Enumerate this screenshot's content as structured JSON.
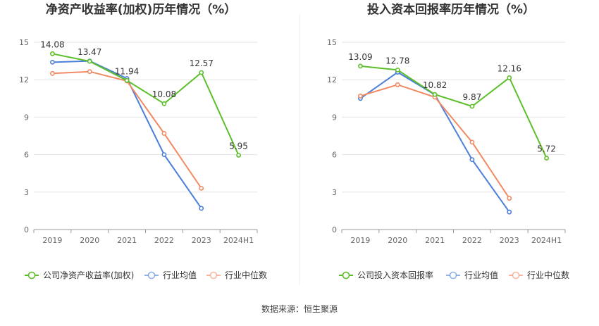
{
  "source_note": "数据来源：恒生聚源",
  "chart_data": [
    {
      "type": "line",
      "title": "净资产收益率(加权)历年情况（%）",
      "categories": [
        "2019",
        "2020",
        "2021",
        "2022",
        "2023",
        "2024H1"
      ],
      "ylim": [
        0,
        15
      ],
      "yticks": [
        "0",
        "3",
        "6",
        "9",
        "12",
        "15"
      ],
      "grid": true,
      "legend_position": "bottom-left",
      "series": [
        {
          "name": "公司净资产收益率(加权)",
          "color": "#5cbf2a",
          "values": [
            14.08,
            13.47,
            11.94,
            10.08,
            12.57,
            5.95
          ],
          "labels": [
            "14.08",
            "13.47",
            "11.94",
            "10.08",
            "12.57",
            "5.95"
          ]
        },
        {
          "name": "行业均值",
          "color": "#4b7fd9",
          "values": [
            13.4,
            13.5,
            12.1,
            6.0,
            1.7,
            null
          ],
          "labels": null
        },
        {
          "name": "行业中位数",
          "color": "#f28a63",
          "values": [
            12.5,
            12.65,
            11.9,
            7.7,
            3.3,
            null
          ],
          "labels": null
        }
      ]
    },
    {
      "type": "line",
      "title": "投入资本回报率历年情况（%）",
      "categories": [
        "2019",
        "2020",
        "2021",
        "2022",
        "2023",
        "2024H1"
      ],
      "ylim": [
        0,
        15
      ],
      "yticks": [
        "0",
        "3",
        "6",
        "9",
        "12",
        "15"
      ],
      "grid": true,
      "legend_position": "bottom-left",
      "series": [
        {
          "name": "公司投入资本回报率",
          "color": "#5cbf2a",
          "values": [
            13.09,
            12.78,
            10.82,
            9.87,
            12.16,
            5.72
          ],
          "labels": [
            "13.09",
            "12.78",
            "10.82",
            "9.87",
            "12.16",
            "5.72"
          ]
        },
        {
          "name": "行业均值",
          "color": "#4b7fd9",
          "values": [
            10.5,
            12.6,
            10.8,
            5.6,
            1.4,
            null
          ],
          "labels": null
        },
        {
          "name": "行业中位数",
          "color": "#f28a63",
          "values": [
            10.7,
            11.6,
            10.6,
            7.0,
            2.5,
            null
          ],
          "labels": null
        }
      ]
    }
  ]
}
